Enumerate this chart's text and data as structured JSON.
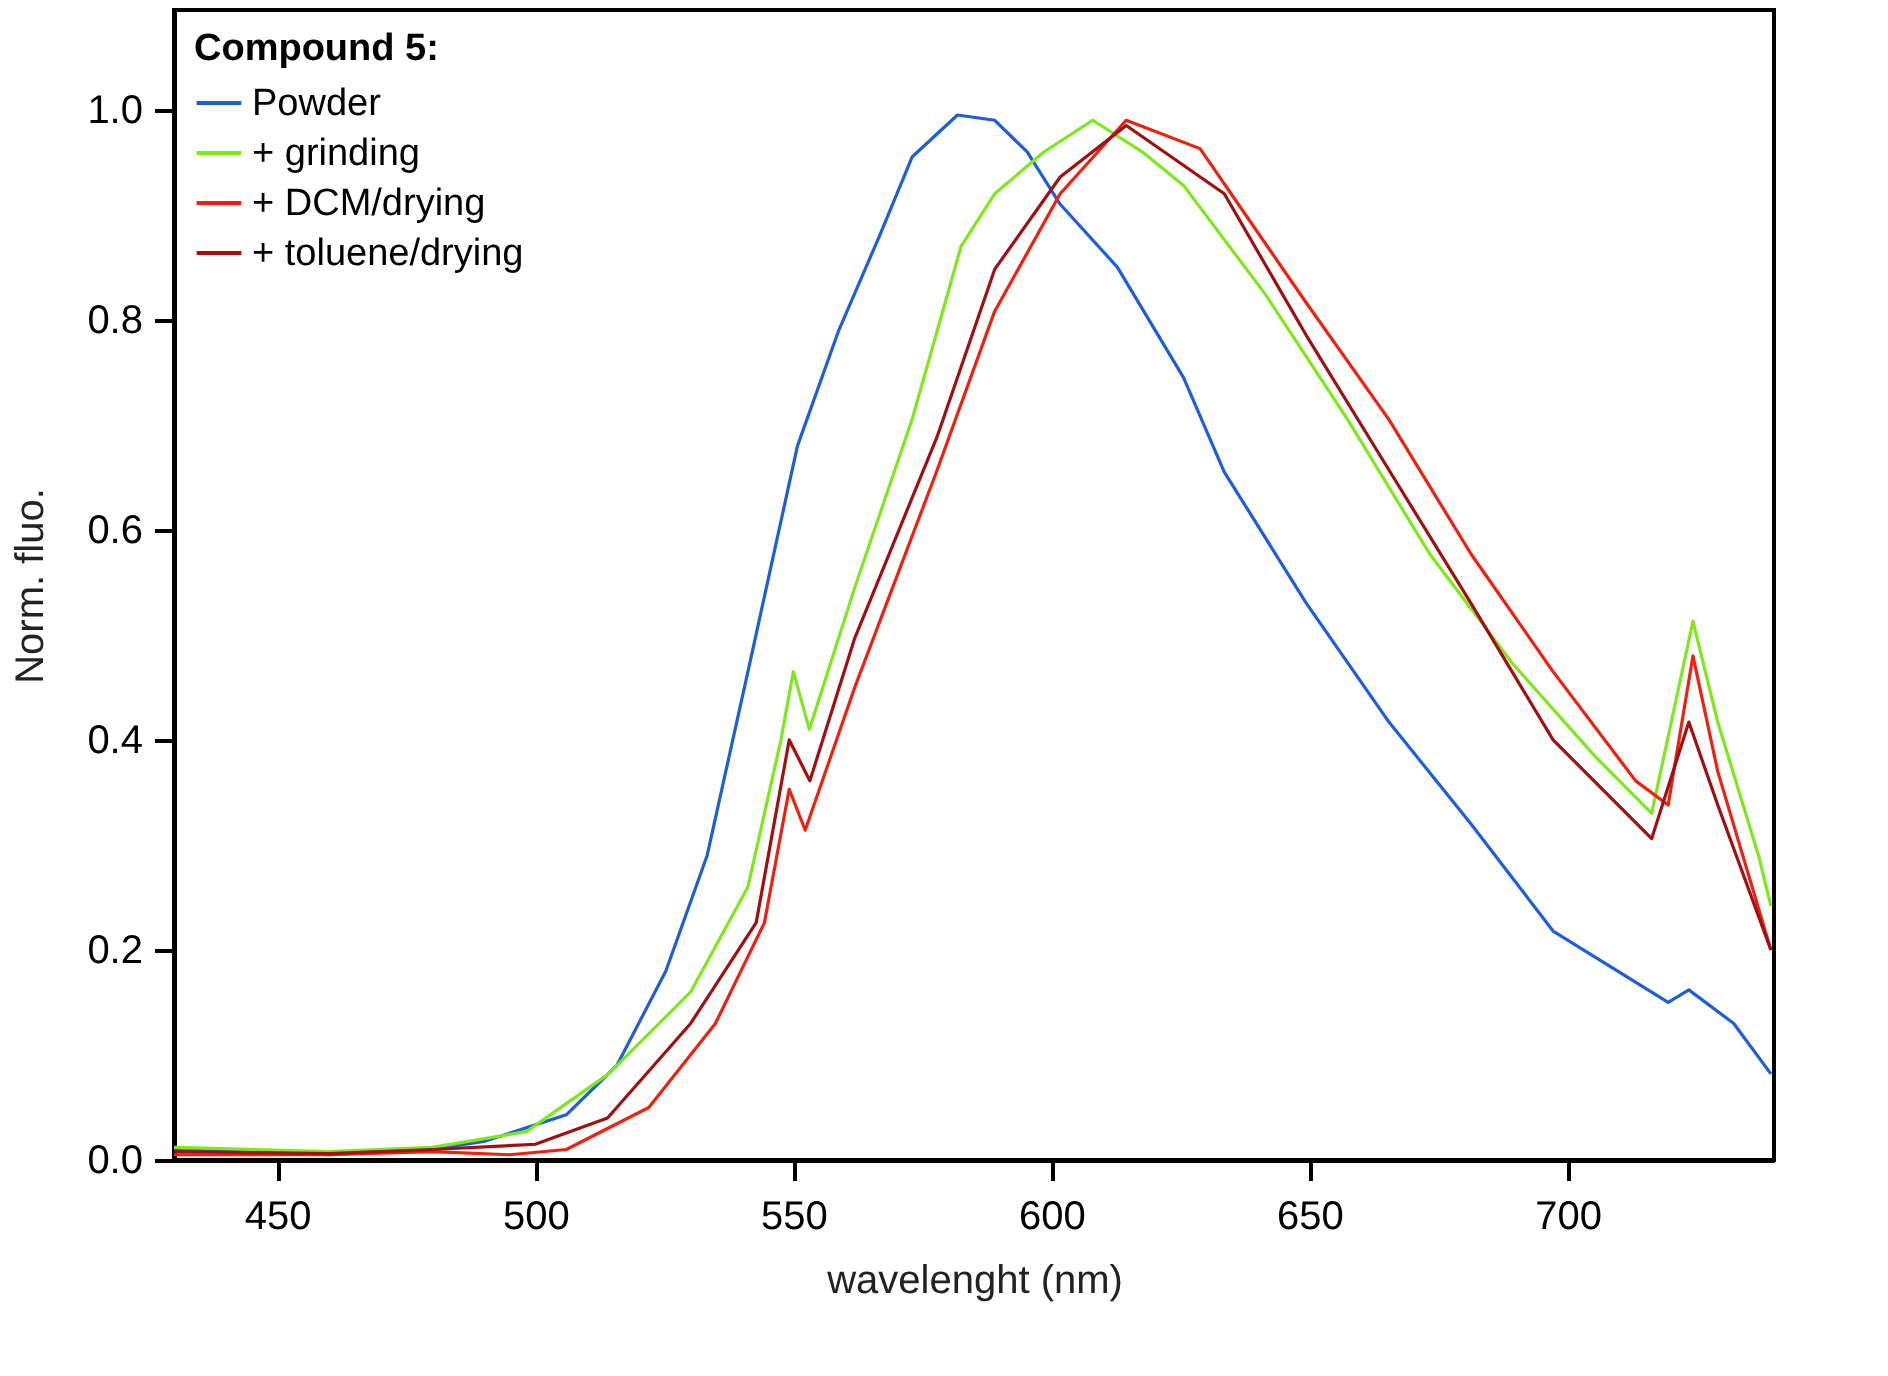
{
  "chart_data": {
    "type": "line",
    "xlabel": "wavelenght (nm)",
    "ylabel": "Norm. fluo.",
    "legend_title": "Compound 5:",
    "xlim": [
      430,
      740
    ],
    "xticks": [
      450,
      500,
      550,
      600,
      650,
      700
    ],
    "ylim": [
      0,
      1.095
    ],
    "yticks": [
      {
        "value": 0,
        "label": "0.0"
      },
      0.2,
      0.4,
      0.6,
      0.8,
      {
        "value": 1,
        "label": "1.0"
      }
    ],
    "grid": false,
    "legend": "top left",
    "series": [
      {
        "name": "Powder",
        "color": "#1f5fd6",
        "x": [
          430,
          460,
          480,
          490.3,
          506,
          515.8,
          525.3,
          533.3,
          541.2,
          550.8,
          558.8,
          566.7,
          573,
          581.8,
          589,
          595.3,
          601.7,
          612.8,
          625.6,
          633.5,
          649.4,
          665.4,
          681.3,
          697.2,
          719.5,
          723.5,
          732.2,
          739.4
        ],
        "values": [
          0.01,
          0.005,
          0.01,
          0.018,
          0.043,
          0.09,
          0.18,
          0.29,
          0.465,
          0.68,
          0.79,
          0.88,
          0.955,
          0.995,
          0.99,
          0.96,
          0.91,
          0.85,
          0.745,
          0.655,
          0.53,
          0.417,
          0.32,
          0.218,
          0.15,
          0.162,
          0.13,
          0.082
        ]
      },
      {
        "name": "+ grinding",
        "color": "#7fe81a",
        "x": [
          430,
          460,
          480,
          498.3,
          514.2,
          530.1,
          541.2,
          547.6,
          550,
          553.1,
          561.9,
          573,
          582.5,
          589,
          598.6,
          608,
          617.6,
          625.6,
          641.5,
          657.4,
          673.3,
          689.3,
          705.2,
          716.3,
          724.3,
          729.1,
          737,
          739.4
        ],
        "values": [
          0.012,
          0.008,
          0.012,
          0.027,
          0.082,
          0.16,
          0.26,
          0.4,
          0.465,
          0.41,
          0.545,
          0.705,
          0.87,
          0.92,
          0.96,
          0.99,
          0.96,
          0.928,
          0.824,
          0.705,
          0.577,
          0.473,
          0.385,
          0.33,
          0.513,
          0.417,
          0.29,
          0.242
        ]
      },
      {
        "name": "+ DCM/drying",
        "color": "#f02010",
        "x": [
          430,
          460,
          480,
          495,
          506,
          522,
          534.9,
          544.4,
          549.2,
          552.3,
          561.9,
          577.8,
          589,
          601.7,
          614.5,
          628.8,
          649.4,
          665.4,
          681.3,
          697.2,
          713.2,
          719.5,
          724.3,
          729.1,
          739.4
        ],
        "values": [
          0.005,
          0.005,
          0.008,
          0.005,
          0.01,
          0.05,
          0.13,
          0.226,
          0.353,
          0.314,
          0.45,
          0.656,
          0.808,
          0.92,
          0.99,
          0.963,
          0.816,
          0.705,
          0.577,
          0.465,
          0.361,
          0.338,
          0.48,
          0.37,
          0.2
        ]
      },
      {
        "name": "+ toluene/drying",
        "color": "#a01010",
        "x": [
          430,
          460,
          480,
          500,
          514,
          530.1,
          542.8,
          549.2,
          553.2,
          561.9,
          577.8,
          589,
          601.7,
          614.5,
          633.5,
          649.4,
          665.4,
          681.3,
          697.2,
          716.3,
          723.5,
          729.1,
          739.4
        ],
        "values": [
          0.008,
          0.006,
          0.01,
          0.015,
          0.04,
          0.13,
          0.226,
          0.4,
          0.361,
          0.497,
          0.688,
          0.848,
          0.936,
          0.985,
          0.92,
          0.785,
          0.657,
          0.53,
          0.4,
          0.306,
          0.417,
          0.338,
          0.2
        ]
      }
    ]
  }
}
